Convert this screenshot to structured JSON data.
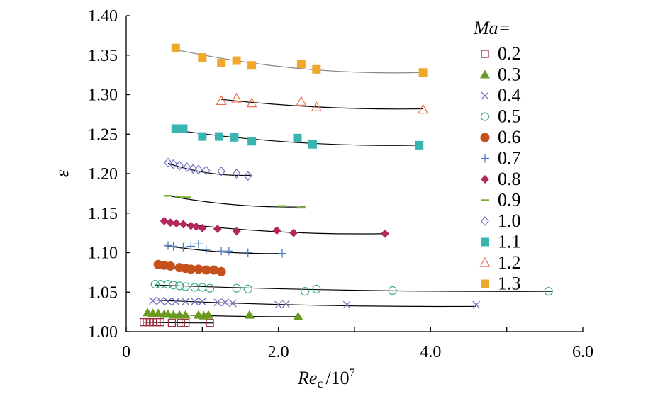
{
  "chart_data": {
    "type": "scatter",
    "title": "",
    "xlabel_main": "Re",
    "xlabel_sub": "c",
    "xlabel_unit": "/10",
    "xlabel_exp": "7",
    "ylabel": "ε",
    "xlim": [
      0,
      6.0
    ],
    "ylim": [
      1.0,
      1.4
    ],
    "xticks": [
      0,
      1.0,
      2.0,
      3.0,
      4.0,
      5.0,
      6.0
    ],
    "xtick_labels": [
      "0",
      "",
      "2.0",
      "",
      "4.0",
      "",
      "6.0"
    ],
    "yticks": [
      1.0,
      1.05,
      1.1,
      1.15,
      1.2,
      1.25,
      1.3,
      1.35,
      1.4
    ],
    "ytick_labels": [
      "1.00",
      "1.05",
      "1.10",
      "1.15",
      "1.20",
      "1.25",
      "1.30",
      "1.35",
      "1.40"
    ],
    "legend_title": "Ma=",
    "legend_position": "right",
    "grid": false,
    "series": [
      {
        "name": "0.2",
        "marker": "square-open",
        "color": "#9b2a3c",
        "x": [
          0.23,
          0.27,
          0.31,
          0.35,
          0.4,
          0.45,
          0.6,
          0.72,
          0.78,
          1.1
        ],
        "y": [
          1.012,
          1.012,
          1.012,
          1.012,
          1.012,
          1.012,
          1.011,
          1.011,
          1.011,
          1.011
        ],
        "fit_x": [
          0.23,
          1.15
        ],
        "fit_y": [
          1.012,
          1.011
        ]
      },
      {
        "name": "0.3",
        "marker": "triangle",
        "color": "#6a9a1f",
        "x": [
          0.28,
          0.35,
          0.42,
          0.5,
          0.55,
          0.62,
          0.7,
          0.78,
          0.95,
          1.02,
          1.08,
          1.62,
          2.26
        ],
        "y": [
          1.024,
          1.023,
          1.023,
          1.022,
          1.022,
          1.021,
          1.021,
          1.021,
          1.021,
          1.02,
          1.021,
          1.021,
          1.019
        ],
        "fit_x": [
          0.28,
          2.3
        ],
        "fit_y": [
          1.023,
          1.019
        ]
      },
      {
        "name": "0.4",
        "marker": "x",
        "color": "#7070c0",
        "x": [
          0.35,
          0.45,
          0.55,
          0.65,
          0.78,
          0.9,
          1.0,
          1.2,
          1.3,
          1.4,
          2.0,
          2.1,
          2.9,
          4.6
        ],
        "y": [
          1.039,
          1.039,
          1.038,
          1.038,
          1.038,
          1.038,
          1.038,
          1.037,
          1.037,
          1.036,
          1.034,
          1.035,
          1.034,
          1.034
        ],
        "fit_x": [
          0.35,
          4.6
        ],
        "fit_y": [
          1.04,
          1.032
        ]
      },
      {
        "name": "0.5",
        "marker": "circle-open",
        "color": "#3aab8c",
        "x": [
          0.38,
          0.45,
          0.55,
          0.62,
          0.7,
          0.78,
          0.9,
          1.0,
          1.1,
          1.45,
          1.6,
          2.35,
          2.5,
          3.5,
          5.55
        ],
        "y": [
          1.06,
          1.06,
          1.06,
          1.059,
          1.058,
          1.057,
          1.056,
          1.056,
          1.055,
          1.055,
          1.054,
          1.051,
          1.054,
          1.052,
          1.051
        ],
        "fit_x": [
          0.38,
          5.6
        ],
        "fit_y": [
          1.059,
          1.051
        ]
      },
      {
        "name": "0.6",
        "marker": "circle",
        "color": "#c5501c",
        "x": [
          0.42,
          0.5,
          0.58,
          0.7,
          0.78,
          0.85,
          0.95,
          1.05,
          1.15,
          1.25
        ],
        "y": [
          1.085,
          1.084,
          1.083,
          1.081,
          1.08,
          1.079,
          1.079,
          1.078,
          1.078,
          1.076
        ],
        "fit_x": [
          0.42,
          1.3
        ],
        "fit_y": [
          1.084,
          1.077
        ]
      },
      {
        "name": "0.7",
        "marker": "plus",
        "color": "#4a7ac0",
        "x": [
          0.55,
          0.62,
          0.75,
          0.85,
          0.95,
          1.05,
          1.25,
          1.35,
          1.6,
          2.05
        ],
        "y": [
          1.109,
          1.108,
          1.107,
          1.108,
          1.111,
          1.104,
          1.102,
          1.102,
          1.1,
          1.099
        ],
        "fit_x": [
          0.5,
          2.05
        ],
        "fit_y": [
          1.109,
          1.099
        ]
      },
      {
        "name": "0.8",
        "marker": "diamond",
        "color": "#b0285c",
        "x": [
          0.5,
          0.58,
          0.66,
          0.75,
          0.85,
          0.92,
          1.0,
          1.2,
          1.45,
          1.98,
          2.2,
          3.4
        ],
        "y": [
          1.14,
          1.138,
          1.137,
          1.136,
          1.134,
          1.133,
          1.131,
          1.13,
          1.127,
          1.128,
          1.125,
          1.124
        ],
        "fit_x": [
          0.5,
          3.4
        ],
        "fit_y": [
          1.139,
          1.124
        ]
      },
      {
        "name": "0.9",
        "marker": "dash",
        "color": "#7ab030",
        "x": [
          0.55,
          0.7,
          0.8,
          2.05,
          2.3
        ],
        "y": [
          1.172,
          1.171,
          1.17,
          1.159,
          1.157
        ],
        "fit_x": [
          0.55,
          2.35
        ],
        "fit_y": [
          1.172,
          1.158
        ]
      },
      {
        "name": "1.0",
        "marker": "diamond-open",
        "color": "#7070c0",
        "x": [
          0.55,
          0.62,
          0.7,
          0.8,
          0.88,
          0.95,
          1.05,
          1.25,
          1.45,
          1.6
        ],
        "y": [
          1.214,
          1.212,
          1.21,
          1.208,
          1.206,
          1.205,
          1.204,
          1.203,
          1.2,
          1.197
        ],
        "fit_x": [
          0.55,
          1.65
        ],
        "fit_y": [
          1.213,
          1.198
        ]
      },
      {
        "name": "1.1",
        "marker": "square",
        "color": "#3ab4b0",
        "x": [
          0.65,
          0.75,
          1.0,
          1.22,
          1.42,
          1.65,
          2.25,
          2.45,
          3.85
        ],
        "y": [
          1.257,
          1.257,
          1.247,
          1.247,
          1.246,
          1.241,
          1.245,
          1.237,
          1.236
        ],
        "fit_x": [
          0.65,
          3.85
        ],
        "fit_y": [
          1.255,
          1.236
        ]
      },
      {
        "name": "1.2",
        "marker": "triangle-open",
        "color": "#e8704a",
        "x": [
          1.25,
          1.45,
          1.65,
          2.3,
          2.5,
          3.9
        ],
        "y": [
          1.292,
          1.295,
          1.289,
          1.291,
          1.284,
          1.281
        ],
        "fit_x": [
          1.25,
          3.9
        ],
        "fit_y": [
          1.294,
          1.282
        ]
      },
      {
        "name": "1.3",
        "marker": "square",
        "color": "#f0a82a",
        "x": [
          0.65,
          1.0,
          1.25,
          1.45,
          1.65,
          2.3,
          2.5,
          3.9
        ],
        "y": [
          1.359,
          1.347,
          1.34,
          1.343,
          1.337,
          1.339,
          1.332,
          1.328
        ],
        "fit_x": [
          0.65,
          3.9
        ],
        "fit_y": [
          1.357,
          1.328
        ]
      }
    ]
  }
}
